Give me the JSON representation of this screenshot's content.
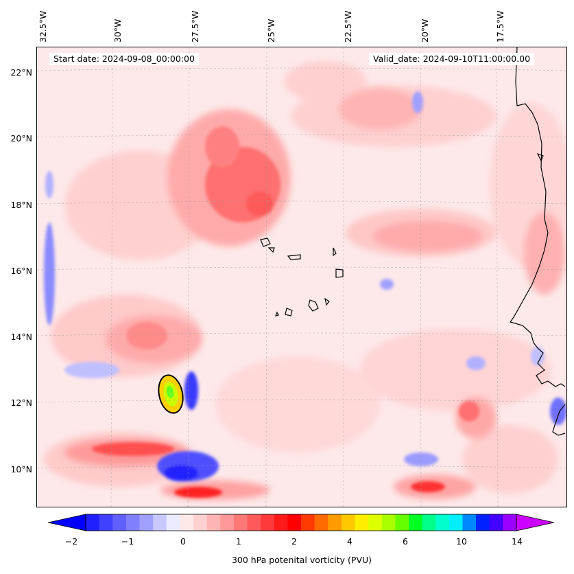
{
  "header": {
    "start_date": "Start date: 2024-09-08_00:00:00",
    "valid_date": "Valid_date: 2024-09-10T11:00:00.00"
  },
  "axes": {
    "longitude_labels": [
      "32.5°W",
      "30°W",
      "27.5°W",
      "25°W",
      "22.5°W",
      "20°W",
      "17.5°W"
    ],
    "latitude_labels": [
      "22°N",
      "20°N",
      "18°N",
      "16°N",
      "14°N",
      "12°N",
      "10°N"
    ]
  },
  "colorbar": {
    "label": "300 hPa potenital vorticity (PVU)",
    "tick_labels": [
      "−2",
      "−1",
      "0",
      "1",
      "2",
      "4",
      "6",
      "10",
      "14"
    ],
    "colors": [
      "#0000ff",
      "#2020ff",
      "#4040ff",
      "#6060ff",
      "#8080ff",
      "#a0a0ff",
      "#c8c8ff",
      "#ececff",
      "#ffe8e8",
      "#ffd0d0",
      "#ffb4b4",
      "#ff9898",
      "#ff7878",
      "#ff5a5a",
      "#ff3a3a",
      "#ff1a1a",
      "#ff0000",
      "#ff3a00",
      "#ff6a00",
      "#ff9a00",
      "#ffc800",
      "#ffee00",
      "#ddff00",
      "#aaff00",
      "#66ff00",
      "#00ff22",
      "#00ff88",
      "#00ffcc",
      "#00eeff",
      "#0088ff",
      "#0022ff",
      "#4400ff",
      "#9900ff",
      "#cc00ff"
    ]
  },
  "colors": {
    "background": "#fde9ea",
    "light_pink": "#ffd6d6",
    "pink": "#ffb0b0",
    "red": "#ff6060",
    "strong_red": "#ff0000",
    "light_blue": "#e8e8ff",
    "blue": "#7f7fff",
    "deep_blue": "#2a2aff",
    "coast": "#000000"
  }
}
